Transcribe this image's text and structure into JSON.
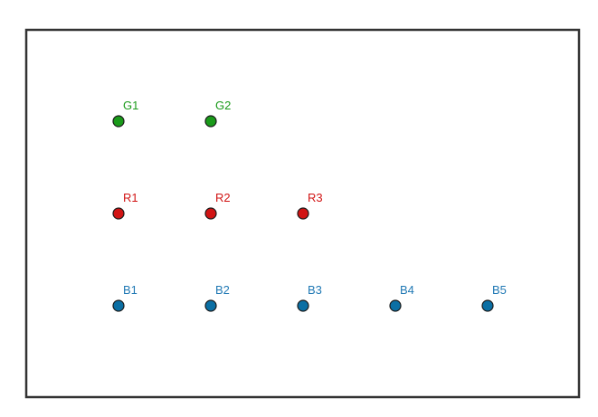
{
  "groups": [
    {
      "id": "green",
      "color": "#1a9a1a",
      "label_color": "#1a9a1a",
      "points": [
        {
          "label": "G1"
        },
        {
          "label": "G2"
        }
      ]
    },
    {
      "id": "red",
      "color": "#d11414",
      "label_color": "#d11414",
      "points": [
        {
          "label": "R1"
        },
        {
          "label": "R2"
        },
        {
          "label": "R3"
        }
      ]
    },
    {
      "id": "blue",
      "color": "#0b6fa4",
      "label_color": "#1f78b4",
      "points": [
        {
          "label": "B1"
        },
        {
          "label": "B2"
        },
        {
          "label": "B3"
        },
        {
          "label": "B4"
        },
        {
          "label": "B5"
        }
      ]
    }
  ],
  "frame_color": "#333333",
  "point_stroke": "#1a1a1a"
}
